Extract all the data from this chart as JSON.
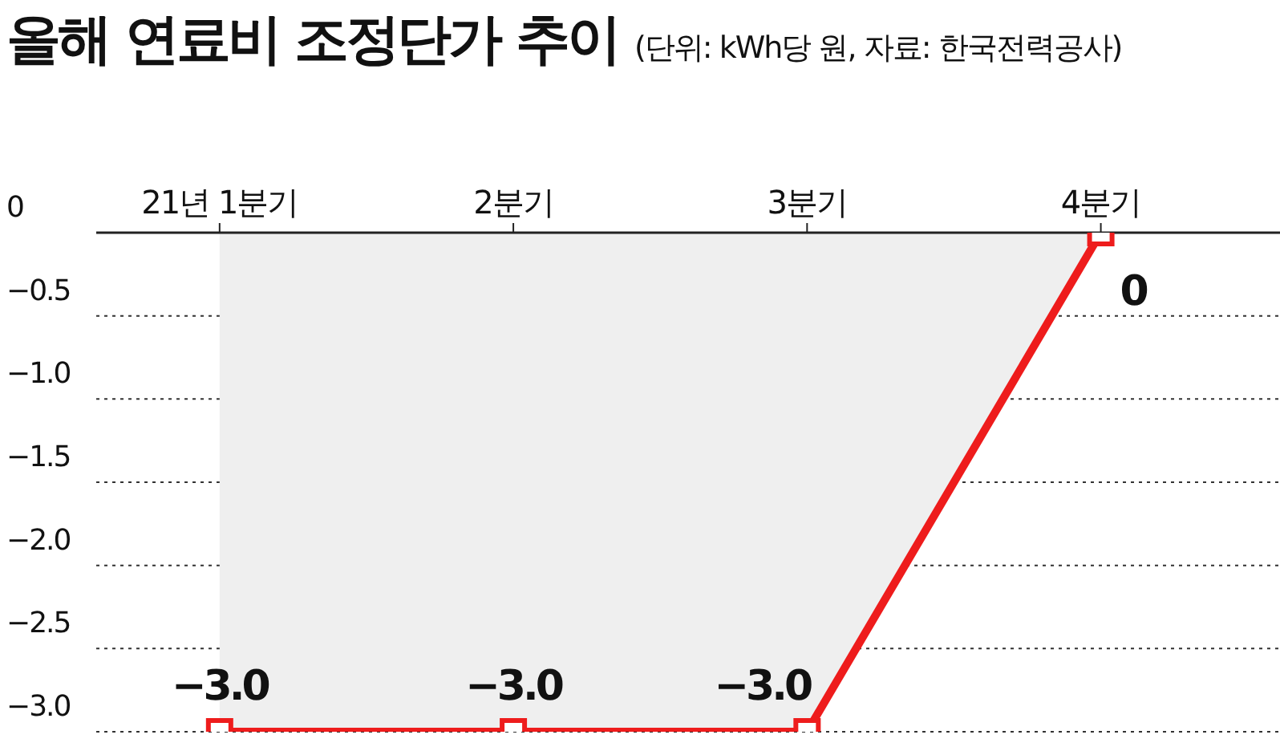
{
  "chart_data": {
    "type": "area",
    "title": "올해 연료비 조정단가 추이",
    "subtitle": "(단위: kWh당 원, 자료: 한국전력공사)",
    "categories": [
      "21년 1분기",
      "2분기",
      "3분기",
      "4분기"
    ],
    "series": [
      {
        "color": "#ee1c1c",
        "values": [
          -3.0,
          -3.0,
          -3.0,
          0
        ],
        "value_labels": [
          "−3.0",
          "−3.0",
          "−3.0",
          "0"
        ]
      }
    ],
    "ylim": [
      -3.0,
      0
    ],
    "yticks": [
      {
        "value": 0,
        "label": "0"
      },
      {
        "value": -0.5,
        "label": "−0.5"
      },
      {
        "value": -1.0,
        "label": "−1.0"
      },
      {
        "value": -1.5,
        "label": "−1.5"
      },
      {
        "value": -2.0,
        "label": "−2.0"
      },
      {
        "value": -2.5,
        "label": "−2.5"
      },
      {
        "value": -3.0,
        "label": "−3.0"
      }
    ],
    "grid": "y",
    "marker": "square",
    "legend": false
  }
}
